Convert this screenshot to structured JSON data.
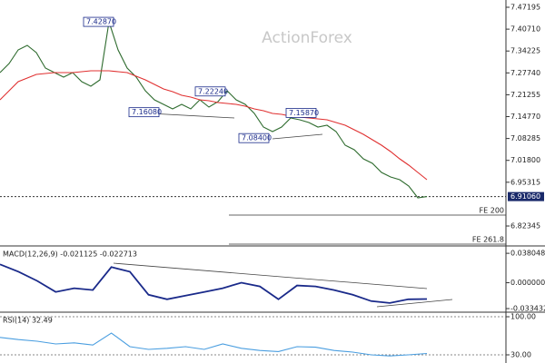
{
  "watermark": "ActionForex",
  "chart_data": [
    {
      "type": "line",
      "series": [
        {
          "name": "Price",
          "color": "#2e6b2e",
          "values": [
            7.2782,
            7.3051,
            7.3455,
            7.359,
            7.3374,
            7.2917,
            7.2782,
            7.2648,
            7.2782,
            7.2513,
            7.2379,
            7.2567,
            7.4287,
            7.3455,
            7.2917,
            7.2648,
            7.2244,
            7.1975,
            7.184,
            7.1706,
            7.184,
            7.1706,
            7.1975,
            7.176,
            7.1921,
            7.2244,
            7.1975,
            7.184,
            7.1571,
            7.1168,
            7.1033,
            7.1168,
            7.1437,
            7.1383,
            7.1302,
            7.1168,
            7.1221,
            7.1033,
            7.0629,
            7.0495,
            7.0226,
            7.0091,
            6.9822,
            6.9688,
            6.9607,
            6.9419,
            6.9069,
            6.9106
          ]
        },
        {
          "name": "MA",
          "color": "#e03030",
          "values": [
            7.1975,
            7.2244,
            7.2513,
            7.2621,
            7.2728,
            7.2755,
            7.2782,
            7.2782,
            7.2782,
            7.2809,
            7.2836,
            7.2836,
            7.2836,
            7.2809,
            7.2782,
            7.2675,
            7.2567,
            7.2432,
            7.2298,
            7.2217,
            7.211,
            7.2056,
            7.1975,
            7.1948,
            7.1894,
            7.1867,
            7.184,
            7.1787,
            7.1706,
            7.1652,
            7.1571,
            7.1544,
            7.149,
            7.1464,
            7.1437,
            7.141,
            7.1383,
            7.1302,
            7.1221,
            7.1087,
            7.0952,
            7.0791,
            7.0629,
            7.0441,
            7.0226,
            7.0038,
            6.9822,
            6.9607
          ]
        }
      ],
      "ylim": [
        6.767,
        7.4935
      ],
      "yticks": [
        {
          "value": 7.47195,
          "label": "7.47195"
        },
        {
          "value": 7.4071,
          "label": "7.40710"
        },
        {
          "value": 7.34225,
          "label": "7.34225"
        },
        {
          "value": 7.2774,
          "label": "7.27740"
        },
        {
          "value": 7.21255,
          "label": "7.21255"
        },
        {
          "value": 7.1477,
          "label": "7.14770"
        },
        {
          "value": 7.08285,
          "label": "7.08285"
        },
        {
          "value": 7.018,
          "label": "7.01800"
        },
        {
          "value": 6.95315,
          "label": "6.95315"
        },
        {
          "value": 6.82345,
          "label": "6.82345"
        }
      ],
      "annotations": [
        {
          "value": 7.4287,
          "label": "7.42870"
        },
        {
          "value": 7.2224,
          "label": "7.22240"
        },
        {
          "value": 7.1608,
          "label": "7.16080"
        },
        {
          "value": 7.084,
          "label": "7.08400"
        },
        {
          "value": 7.1587,
          "label": "7.15870"
        }
      ],
      "reference_lines": [
        {
          "value": 6.9106,
          "label": "6.91060"
        },
        {
          "value": 6.8557,
          "label": "FE 200"
        },
        {
          "value": 6.7697,
          "label": "FE 261.8"
        }
      ]
    },
    {
      "type": "line",
      "title": "MACD(12,26,9) -0.021125 -0.022713",
      "series": [
        {
          "name": "MACD",
          "color": "#1a2a8a",
          "values": [
            0.0238,
            0.0143,
            0.0024,
            -0.0119,
            -0.0071,
            -0.0095,
            0.0202,
            0.0143,
            -0.0155,
            -0.0214,
            -0.0166,
            -0.0119,
            -0.0071,
            0,
            -0.0048,
            -0.0214,
            -0.0036,
            -0.0048,
            -0.0095,
            -0.0155,
            -0.0238,
            -0.0262,
            -0.0214,
            -0.0211
          ]
        }
      ],
      "ylim": [
        -0.0369,
        0.0464
      ],
      "yticks": [
        {
          "value": -0.033432,
          "label": "-0.033432"
        },
        {
          "value": 0,
          "label": "0.000000"
        },
        {
          "value": 0.038048,
          "label": "0.038048"
        }
      ]
    },
    {
      "type": "line",
      "title": "RSI(14) 32.49",
      "series": [
        {
          "name": "RSI",
          "color": "#4a9ee0",
          "values": [
            62,
            58,
            55,
            50,
            52,
            48,
            70,
            45,
            40,
            42,
            45,
            40,
            50,
            42,
            38,
            36,
            45,
            44,
            38,
            35,
            30,
            28,
            30,
            32.49
          ]
        }
      ],
      "ylim": [
        15,
        106.7
      ],
      "yticks": [
        {
          "value": 30,
          "label": "30.00"
        },
        {
          "value": 100,
          "label": "100.00"
        }
      ]
    }
  ]
}
